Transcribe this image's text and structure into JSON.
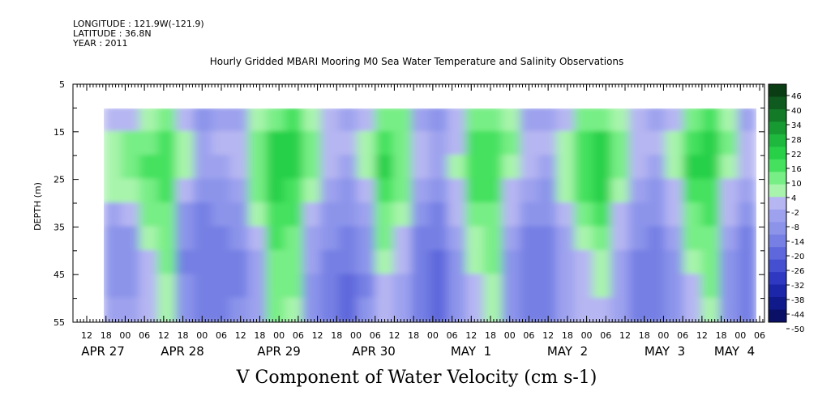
{
  "header": {
    "longitude": "LONGITUDE : 121.9W(-121.9)",
    "latitude": "LATITUDE : 36.8N",
    "year": "YEAR : 2011"
  },
  "chart_data": {
    "type": "heatmap",
    "title": "Hourly Gridded MBARI Mooring M0 Sea Water Temperature and Salinity Observations",
    "xlabel": "V Component of Water Velocity (cm s-1)",
    "ylabel": "DEPTH (m)",
    "ylim": [
      55,
      5
    ],
    "y_ticks": [
      5,
      15,
      25,
      35,
      45,
      55
    ],
    "data_depth_range": [
      10,
      55
    ],
    "x_hour_ticks": [
      "12",
      "18",
      "00",
      "06",
      "12",
      "18",
      "00",
      "06",
      "12",
      "18",
      "00",
      "06",
      "12",
      "18",
      "00",
      "06",
      "12",
      "18",
      "00",
      "06",
      "12",
      "18",
      "00",
      "06",
      "12",
      "18",
      "00",
      "06",
      "12",
      "18",
      "00",
      "06",
      "12",
      "18",
      "00",
      "06"
    ],
    "x_day_labels": [
      "APR 27",
      "APR 28",
      "APR 29",
      "APR 30",
      "MAY  1",
      "MAY  2",
      "MAY  3",
      "MAY  4"
    ],
    "colorbar_labels": [
      "46",
      "40",
      "34",
      "28",
      "22",
      "16",
      "10",
      "4",
      "-2",
      "-8",
      "-14",
      "-20",
      "-26",
      "-32",
      "-38",
      "-44",
      "-50"
    ],
    "colorbar_colors": [
      "#0b3d14",
      "#0f5a1e",
      "#137a28",
      "#189a33",
      "#1db83d",
      "#28d048",
      "#45e15e",
      "#78ee86",
      "#a8f4ac",
      "#b6b6f2",
      "#9ea2ee",
      "#8c94ea",
      "#7680e4",
      "#5e68dc",
      "#4450d0",
      "#2e38c0",
      "#1c26a8",
      "#101a8a",
      "#0a1066"
    ],
    "values_cm_s": [
      [
        0,
        4,
        5,
        3,
        -6,
        -12,
        -14,
        -13,
        -8
      ],
      [
        0,
        6,
        7,
        5,
        -4,
        -10,
        -12,
        -10,
        -6
      ],
      [
        4,
        10,
        12,
        10,
        8,
        4,
        0,
        -2,
        -3
      ],
      [
        8,
        14,
        14,
        12,
        10,
        8,
        6,
        4,
        2
      ],
      [
        -2,
        4,
        2,
        -4,
        -10,
        -14,
        -15,
        -14,
        -12
      ],
      [
        -10,
        -6,
        -8,
        -12,
        -16,
        -17,
        -18,
        -17,
        -16
      ],
      [
        -8,
        -4,
        -6,
        -10,
        -14,
        -16,
        -17,
        -17,
        -16
      ],
      [
        -6,
        -2,
        -4,
        -8,
        -12,
        -14,
        -15,
        -15,
        -14
      ],
      [
        2,
        8,
        10,
        8,
        4,
        -2,
        -6,
        -8,
        -9
      ],
      [
        10,
        16,
        18,
        16,
        14,
        12,
        10,
        8,
        6
      ],
      [
        12,
        16,
        16,
        14,
        12,
        10,
        8,
        6,
        4
      ],
      [
        4,
        8,
        6,
        2,
        -2,
        -6,
        -8,
        -10,
        -10
      ],
      [
        -4,
        0,
        -2,
        -6,
        -10,
        -14,
        -16,
        -17,
        -17
      ],
      [
        -8,
        -4,
        -6,
        -10,
        -14,
        -17,
        -19,
        -20,
        -20
      ],
      [
        -2,
        2,
        4,
        -2,
        -8,
        -12,
        -14,
        -15,
        -14
      ],
      [
        8,
        14,
        16,
        14,
        10,
        6,
        2,
        0,
        -2
      ],
      [
        6,
        10,
        10,
        6,
        2,
        -2,
        -4,
        -6,
        -6
      ],
      [
        -6,
        -2,
        -4,
        -8,
        -12,
        -15,
        -16,
        -16,
        -15
      ],
      [
        -10,
        -6,
        -8,
        -12,
        -16,
        -18,
        -20,
        -21,
        -20
      ],
      [
        -4,
        0,
        2,
        0,
        -4,
        -8,
        -10,
        -11,
        -10
      ],
      [
        6,
        12,
        14,
        12,
        8,
        4,
        2,
        0,
        -1
      ],
      [
        10,
        14,
        14,
        12,
        10,
        8,
        6,
        4,
        3
      ],
      [
        2,
        6,
        4,
        0,
        -4,
        -8,
        -10,
        -12,
        -12
      ],
      [
        -6,
        -2,
        -4,
        -8,
        -12,
        -15,
        -17,
        -18,
        -18
      ],
      [
        -8,
        -4,
        -6,
        -10,
        -14,
        -16,
        -18,
        -19,
        -19
      ],
      [
        -2,
        2,
        4,
        2,
        -2,
        -6,
        -8,
        -9,
        -9
      ],
      [
        6,
        12,
        14,
        12,
        8,
        4,
        0,
        -2,
        -3
      ],
      [
        10,
        16,
        18,
        16,
        12,
        8,
        4,
        2,
        0
      ],
      [
        4,
        8,
        8,
        4,
        0,
        -4,
        -6,
        -8,
        -8
      ],
      [
        -4,
        0,
        -2,
        -6,
        -10,
        -13,
        -15,
        -16,
        -16
      ],
      [
        -8,
        -4,
        -6,
        -10,
        -14,
        -16,
        -17,
        -18,
        -18
      ],
      [
        -2,
        2,
        4,
        0,
        -4,
        -8,
        -10,
        -11,
        -11
      ],
      [
        8,
        14,
        16,
        14,
        10,
        6,
        2,
        0,
        -1
      ],
      [
        12,
        16,
        16,
        14,
        12,
        10,
        8,
        6,
        5
      ],
      [
        2,
        6,
        4,
        0,
        -4,
        -8,
        -10,
        -12,
        -12
      ],
      [
        -6,
        -2,
        -4,
        -8,
        -12,
        -15,
        -17,
        -18,
        -18
      ]
    ]
  },
  "colors": {
    "green_hi": "#18d83c",
    "green_lo": "#a8f4ac",
    "blue_lo": "#b6b6f2",
    "blue_hi": "#5e68dc"
  }
}
